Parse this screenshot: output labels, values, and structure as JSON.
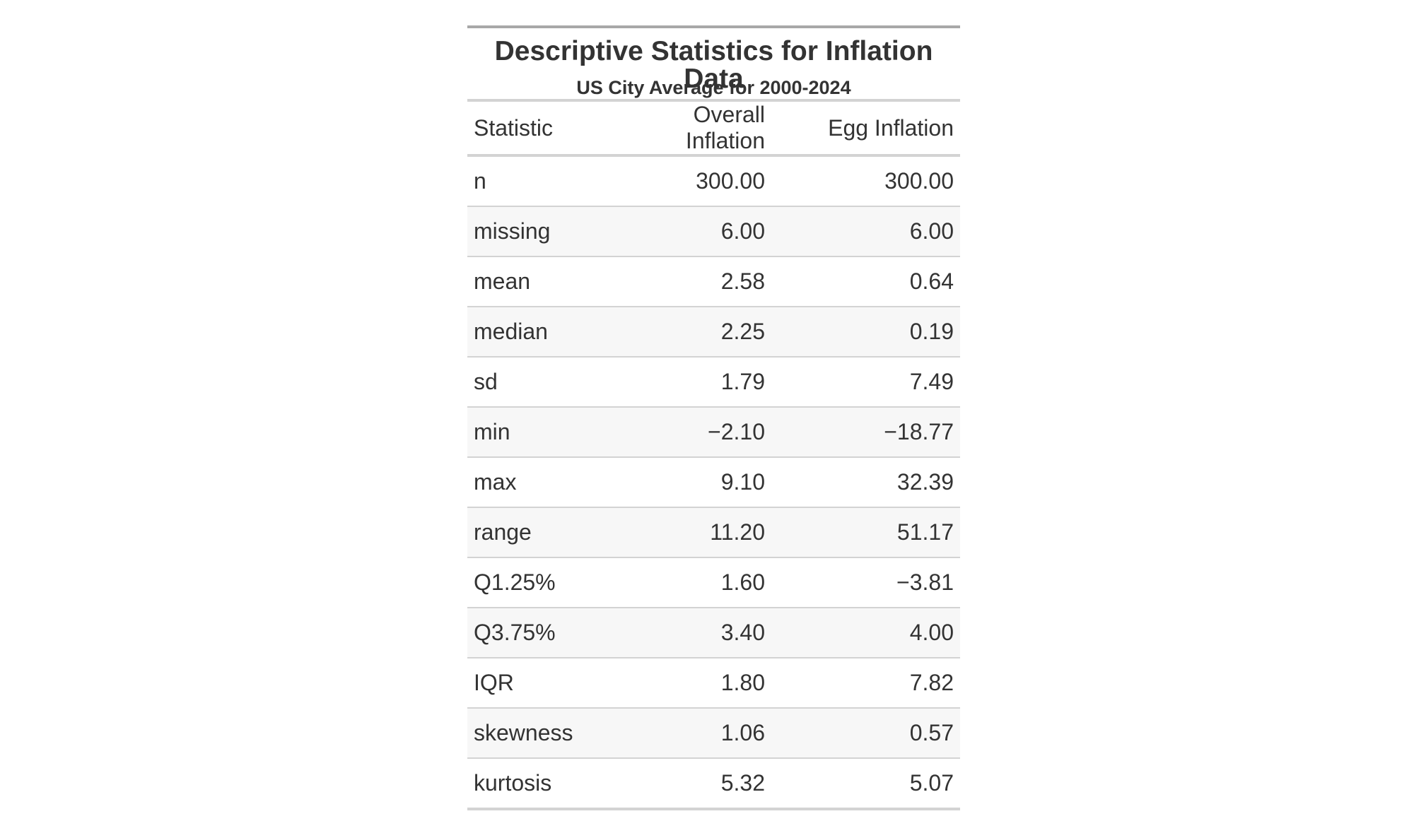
{
  "table": {
    "title": "Descriptive Statistics for Inflation Data",
    "subtitle": "US City Average for 2000-2024",
    "columns": [
      "Statistic",
      "Overall Inflation",
      "Egg Inflation"
    ],
    "rows": [
      {
        "statistic": "n",
        "overall": "300.00",
        "egg": "300.00"
      },
      {
        "statistic": "missing",
        "overall": "6.00",
        "egg": "6.00"
      },
      {
        "statistic": "mean",
        "overall": "2.58",
        "egg": "0.64"
      },
      {
        "statistic": "median",
        "overall": "2.25",
        "egg": "0.19"
      },
      {
        "statistic": "sd",
        "overall": "1.79",
        "egg": "7.49"
      },
      {
        "statistic": "min",
        "overall": "−2.10",
        "egg": "−18.77"
      },
      {
        "statistic": "max",
        "overall": "9.10",
        "egg": "32.39"
      },
      {
        "statistic": "range",
        "overall": "11.20",
        "egg": "51.17"
      },
      {
        "statistic": "Q1.25%",
        "overall": "1.60",
        "egg": "−3.81"
      },
      {
        "statistic": "Q3.75%",
        "overall": "3.40",
        "egg": "4.00"
      },
      {
        "statistic": "IQR",
        "overall": "1.80",
        "egg": "7.82"
      },
      {
        "statistic": "skewness",
        "overall": "1.06",
        "egg": "0.57"
      },
      {
        "statistic": "kurtosis",
        "overall": "5.32",
        "egg": "5.07"
      }
    ]
  }
}
